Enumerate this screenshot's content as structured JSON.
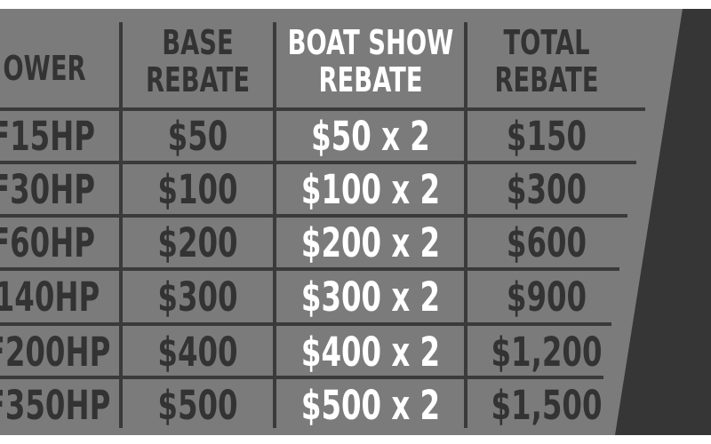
{
  "colors": {
    "panel": "#7b7b7b",
    "panel_edge": "#363636",
    "rule": "#3a3a3a",
    "text_dark": "#333333",
    "text_highlight": "#ffffff"
  },
  "table": {
    "headers": {
      "power": "OWER",
      "base": [
        "BASE",
        "REBATE"
      ],
      "boat_show": [
        "BOAT SHOW",
        "REBATE"
      ],
      "total": [
        "TOTAL",
        "REBATE"
      ]
    },
    "rows": [
      {
        "power": "F15HP",
        "base": "$50",
        "boat_show": "$50 x 2",
        "total": "$150"
      },
      {
        "power": "F30HP",
        "base": "$100",
        "boat_show": "$100 x 2",
        "total": "$300"
      },
      {
        "power": "F60HP",
        "base": "$200",
        "boat_show": "$200 x 2",
        "total": "$600"
      },
      {
        "power": "140HP",
        "base": "$300",
        "boat_show": "$300 x 2",
        "total": "$900"
      },
      {
        "power": "F200HP",
        "base": "$400",
        "boat_show": "$400 x 2",
        "total": "$1,200"
      },
      {
        "power": "F350HP",
        "base": "$500",
        "boat_show": "$500 x 2",
        "total": "$1,500"
      }
    ]
  }
}
